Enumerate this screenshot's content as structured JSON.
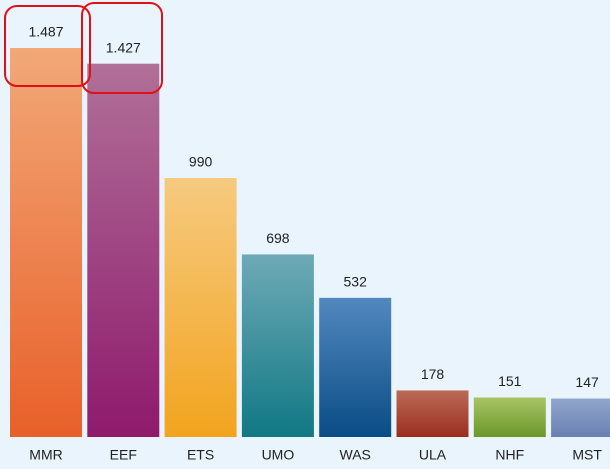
{
  "chart_data": {
    "type": "bar",
    "categories": [
      "MMR",
      "EEF",
      "ETS",
      "UMO",
      "WAS",
      "ULA",
      "NHF",
      "MST"
    ],
    "values": [
      1487,
      1427,
      990,
      698,
      532,
      178,
      151,
      147
    ],
    "value_labels": [
      "1.487",
      "1.427",
      "990",
      "698",
      "532",
      "178",
      "151",
      "147"
    ],
    "colors": [
      [
        "#f2a878",
        "#e8602a"
      ],
      [
        "#b07098",
        "#8e1a6c"
      ],
      [
        "#f6ca80",
        "#f2a41e"
      ],
      [
        "#6eaab6",
        "#107884"
      ],
      [
        "#5288be",
        "#0a4c86"
      ],
      [
        "#bc6a58",
        "#9a2e1e"
      ],
      [
        "#a8c466",
        "#6a982a"
      ],
      [
        "#90a6cc",
        "#6a80b2"
      ]
    ]
  }
}
